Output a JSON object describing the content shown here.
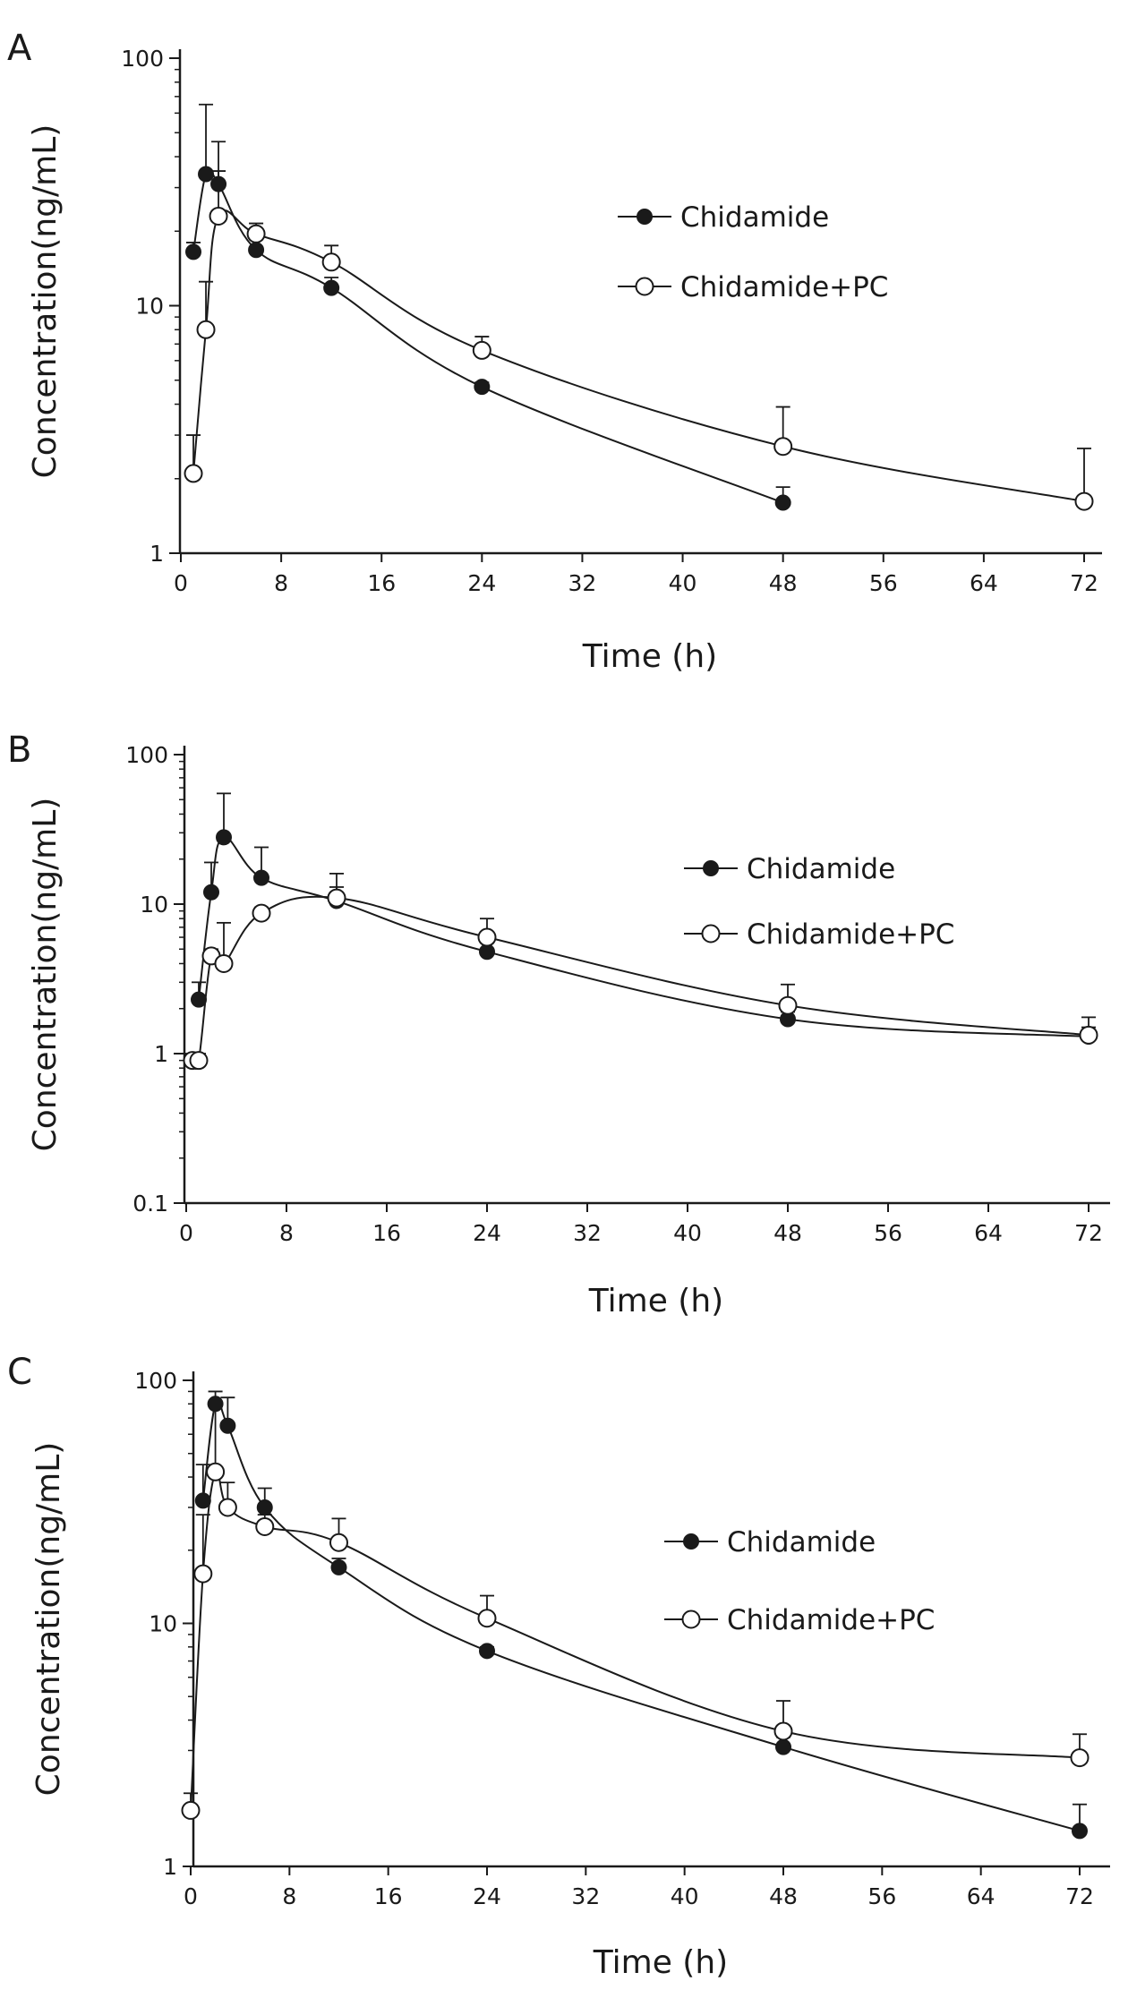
{
  "figure": {
    "background": "#ffffff",
    "line_color": "#1a1a1a"
  },
  "chart_data": [
    {
      "panel_label": "A",
      "type": "line",
      "yscale": "log",
      "xlabel": "Time (h)",
      "ylabel": "Concentration(ng/mL)",
      "xlim": [
        0,
        74
      ],
      "ylim": [
        1,
        100
      ],
      "xticks": [
        0,
        8,
        16,
        24,
        32,
        40,
        48,
        56,
        64,
        72
      ],
      "yticks": [
        1,
        10,
        100
      ],
      "legend_position": "right",
      "series": [
        {
          "name": "Chidamide",
          "marker": "filled-circle",
          "x": [
            1,
            2,
            3,
            6,
            12,
            24,
            48
          ],
          "y": [
            16.5,
            34,
            31,
            16.8,
            11.8,
            4.7,
            1.6
          ],
          "error_upper": [
            18,
            65,
            46,
            18.5,
            13,
            4.9,
            1.85
          ]
        },
        {
          "name": "Chidamide+PC",
          "marker": "open-circle",
          "x": [
            1,
            2,
            3,
            6,
            12,
            24,
            48,
            72
          ],
          "y": [
            2.1,
            8,
            23,
            19.5,
            15,
            6.6,
            2.7,
            1.62
          ],
          "error_upper": [
            3,
            12.5,
            35,
            21.5,
            17.5,
            7.5,
            3.9,
            2.65
          ]
        }
      ]
    },
    {
      "panel_label": "B",
      "type": "line",
      "yscale": "log",
      "xlabel": "Time (h)",
      "ylabel": "Concentration(ng/mL)",
      "xlim": [
        0,
        74
      ],
      "ylim": [
        0.1,
        100
      ],
      "xticks": [
        0,
        8,
        16,
        24,
        32,
        40,
        48,
        56,
        64,
        72
      ],
      "yticks": [
        0.1,
        1,
        10,
        100
      ],
      "legend_position": "right",
      "series": [
        {
          "name": "Chidamide",
          "marker": "filled-circle",
          "x": [
            1,
            2,
            3,
            6,
            12,
            24,
            48,
            72
          ],
          "y": [
            2.3,
            12,
            28,
            15,
            10.5,
            4.8,
            1.7,
            1.3
          ],
          "error_upper": [
            3,
            19,
            55,
            24,
            13,
            5.5,
            1.9,
            1.5
          ]
        },
        {
          "name": "Chidamide+PC",
          "marker": "open-circle",
          "x": [
            0.5,
            1,
            2,
            3,
            6,
            12,
            24,
            48,
            72
          ],
          "y": [
            0.9,
            0.9,
            4.5,
            4,
            8.7,
            11,
            6,
            2.1,
            1.33
          ],
          "error_upper": [
            1,
            1,
            5,
            7.5,
            9.5,
            16,
            8,
            2.9,
            1.75
          ]
        }
      ]
    },
    {
      "panel_label": "C",
      "type": "line",
      "yscale": "log",
      "xlabel": "Time (h)",
      "ylabel": "Concentration(ng/mL)",
      "xlim": [
        0,
        74
      ],
      "ylim": [
        1,
        100
      ],
      "xticks": [
        0,
        8,
        16,
        24,
        32,
        40,
        48,
        56,
        64,
        72
      ],
      "yticks": [
        1,
        10,
        100
      ],
      "legend_position": "right",
      "series": [
        {
          "name": "Chidamide",
          "marker": "filled-circle",
          "x": [
            1,
            2,
            3,
            6,
            12,
            24,
            48,
            72
          ],
          "y": [
            32,
            80,
            65,
            30,
            17,
            7.7,
            3.1,
            1.4
          ],
          "error_upper": [
            45,
            90,
            85,
            36,
            18.5,
            8,
            3.4,
            1.8
          ]
        },
        {
          "name": "Chidamide+PC",
          "marker": "open-circle",
          "x": [
            0,
            1,
            2,
            3,
            6,
            12,
            24,
            48,
            72
          ],
          "y": [
            1.7,
            16,
            42,
            30,
            25,
            21.5,
            10.5,
            3.6,
            2.8
          ],
          "error_upper": [
            2,
            28,
            80,
            38,
            28,
            27,
            13,
            4.8,
            3.5
          ]
        }
      ]
    }
  ]
}
